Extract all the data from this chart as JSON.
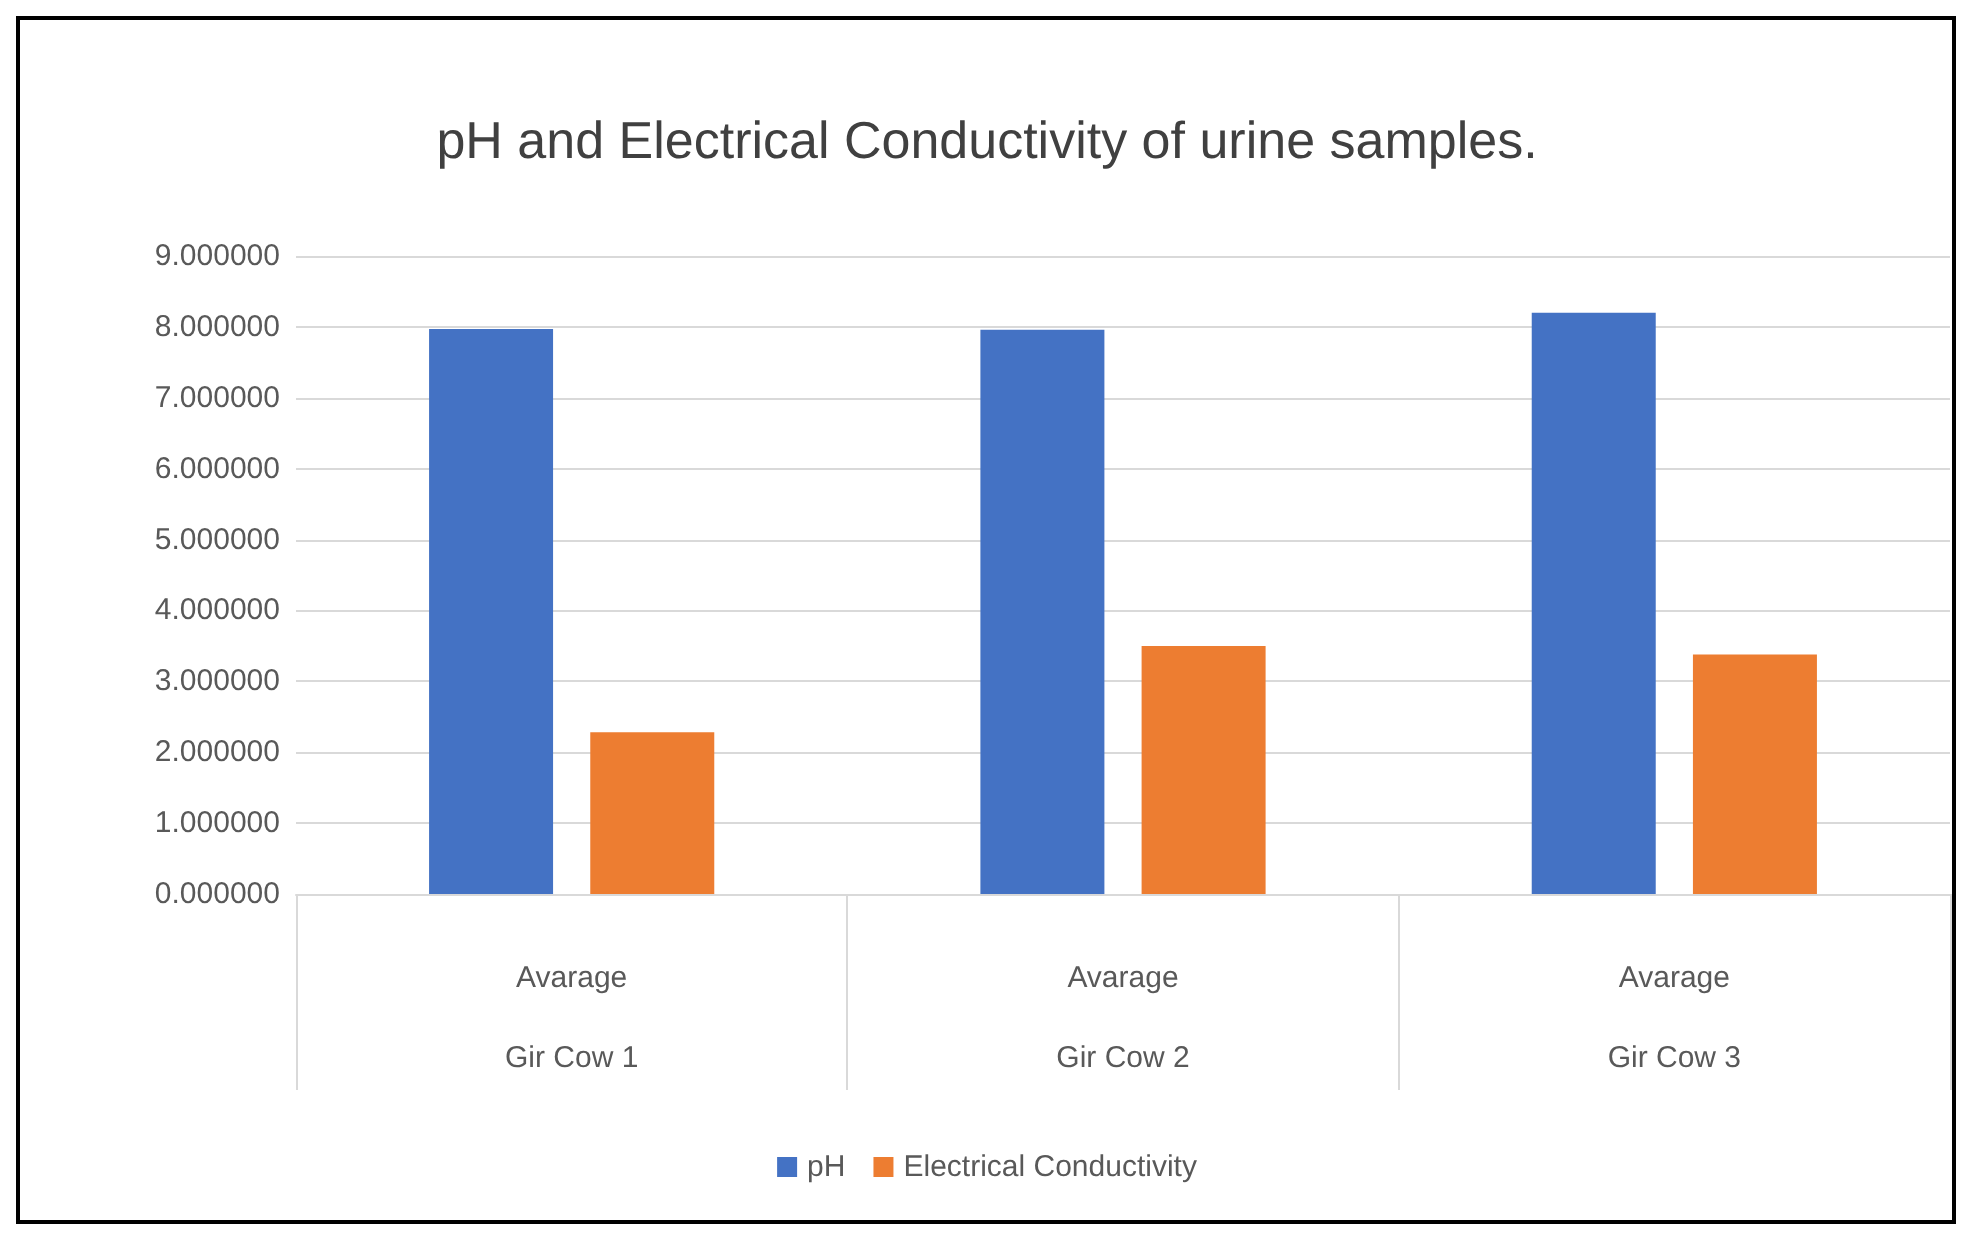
{
  "chart_data": {
    "type": "bar",
    "title": "pH and Electrical Conductivity of urine samples.",
    "categories": [
      "Avarage\nGir Cow 1",
      "Avarage\nGir Cow 2",
      "Avarage\nGir Cow 3"
    ],
    "series": [
      {
        "name": "pH",
        "color": "#4472c4",
        "values": [
          7.97,
          7.96,
          8.2
        ]
      },
      {
        "name": "Electrical Conductivity",
        "color": "#ed7d31",
        "values": [
          2.28,
          3.5,
          3.38
        ]
      }
    ],
    "ylim": [
      0,
      9
    ],
    "yticks": [
      {
        "value": 0,
        "label": "0.000000"
      },
      {
        "value": 1,
        "label": "1.000000"
      },
      {
        "value": 2,
        "label": "2.000000"
      },
      {
        "value": 3,
        "label": "3.000000"
      },
      {
        "value": 4,
        "label": "4.000000"
      },
      {
        "value": 5,
        "label": "5.000000"
      },
      {
        "value": 6,
        "label": "6.000000"
      },
      {
        "value": 7,
        "label": "7.000000"
      },
      {
        "value": 8,
        "label": "8.000000"
      },
      {
        "value": 9,
        "label": "9.000000"
      }
    ],
    "grid": "y",
    "legend": "bottom"
  }
}
